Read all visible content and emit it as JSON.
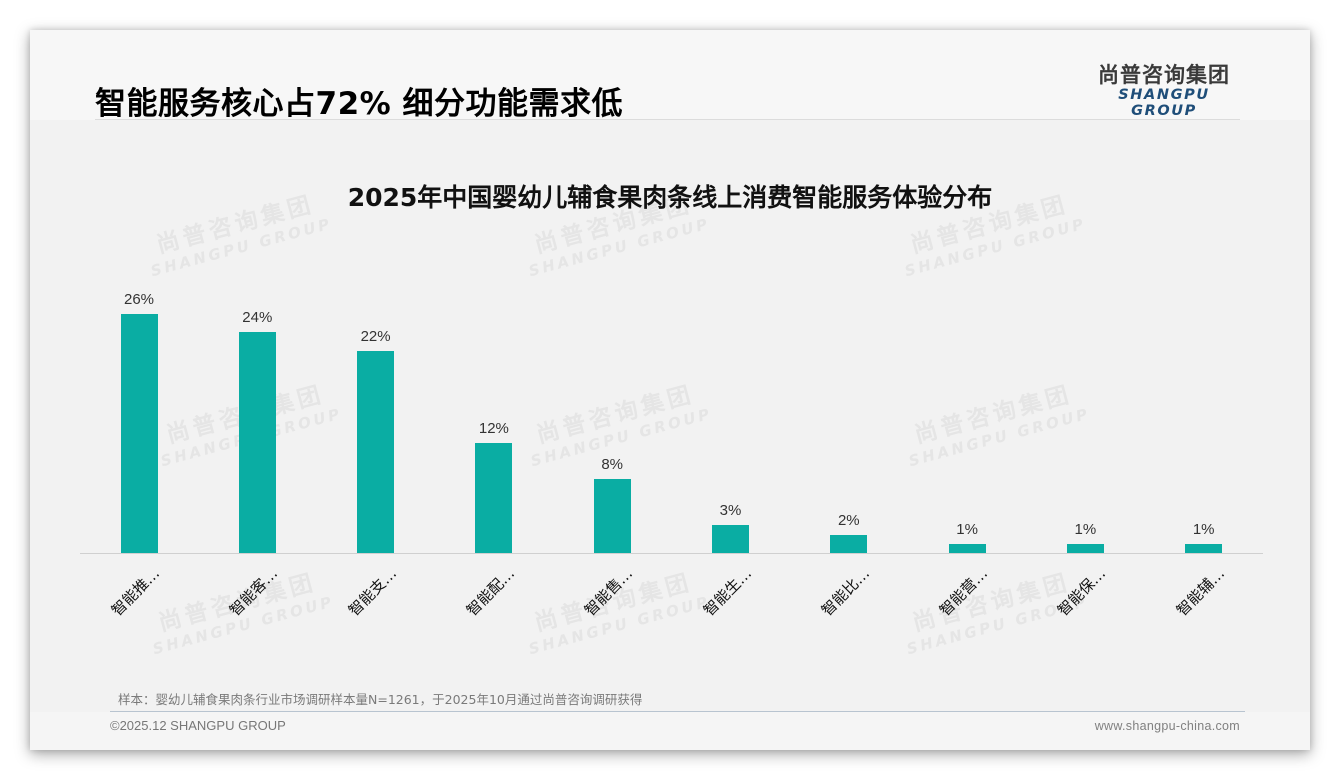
{
  "header": {
    "title": "智能服务核心占72% 细分功能需求低",
    "logo_cn": "尚普咨询集团",
    "logo_en": "SHANGPU GROUP"
  },
  "watermark": {
    "cn": "尚普咨询集团",
    "en": "SHANGPU GROUP"
  },
  "chart_data": {
    "type": "bar",
    "title": "2025年中国婴幼儿辅食果肉条线上消费智能服务体验分布",
    "categories": [
      "智能推…",
      "智能客…",
      "智能支…",
      "智能配…",
      "智能售…",
      "智能生…",
      "智能比…",
      "智能营…",
      "智能保…",
      "智能辅…"
    ],
    "values": [
      26,
      24,
      22,
      12,
      8,
      3,
      2,
      1,
      1,
      1
    ],
    "value_labels": [
      "26%",
      "24%",
      "22%",
      "12%",
      "8%",
      "3%",
      "2%",
      "1%",
      "1%",
      "1%"
    ],
    "xlabel": "",
    "ylabel": "",
    "ylim": [
      0,
      26
    ],
    "grid": false,
    "legend": "none",
    "bar_color": "#0aada3",
    "unit": "%"
  },
  "footer": {
    "sample_note": "样本：婴幼儿辅食果肉条行业市场调研样本量N=1261，于2025年10月通过尚普咨询调研获得",
    "copyright": "©2025.12 SHANGPU GROUP",
    "website": "www.shangpu-china.com"
  },
  "colors": {
    "accent": "#0aada3",
    "logo_en": "#1f4e79",
    "title": "#000000"
  }
}
